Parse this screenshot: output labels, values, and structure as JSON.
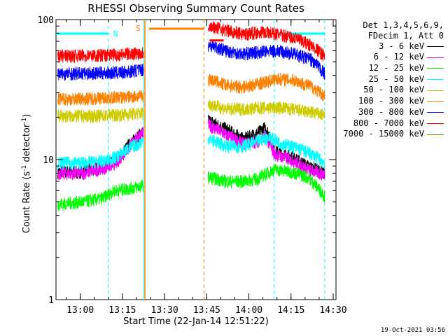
{
  "chart_data": {
    "type": "line",
    "title": "RHESSI Observing Summary Count Rates",
    "xlabel": "Start Time (22-Jan-14 12:51:22)",
    "ylabel_main": "Count Rate (s",
    "ylabel_sup": "-1",
    "ylabel_tail": " detector",
    "ylabel_close": ")",
    "x_axis": {
      "range": [
        "12:51:22",
        "14:31:00"
      ],
      "ticks": [
        "13:00",
        "13:15",
        "13:30",
        "13:45",
        "14:00",
        "14:15",
        "14:30"
      ]
    },
    "y_axis": {
      "scale": "log",
      "range": [
        1,
        100
      ],
      "ticks": [
        "1",
        "10",
        "100"
      ]
    },
    "legend_header": [
      "Det 1,3,4,5,6,9,",
      "FDecim 1, Att 0"
    ],
    "legend_placement": "right",
    "series": [
      {
        "name": "3 - 6 keV",
        "color": "#000000",
        "points": [
          [
            "12:52",
            8.2
          ],
          [
            "13:01",
            8.2
          ],
          [
            "13:09",
            9.0
          ],
          [
            "13:13",
            10.0
          ],
          [
            "13:17",
            12.5
          ],
          [
            "13:21",
            15.0
          ],
          [
            "13:22",
            15.5
          ],
          [
            "13:46",
            19.0
          ],
          [
            "13:52",
            16.5
          ],
          [
            "13:58",
            14.0
          ],
          [
            "14:03",
            15.5
          ],
          [
            "14:06",
            17.0
          ],
          [
            "14:09",
            11.5
          ],
          [
            "14:15",
            10.5
          ],
          [
            "14:21",
            9.0
          ],
          [
            "14:27",
            8.0
          ]
        ]
      },
      {
        "name": "6 - 12 keV",
        "color": "#ff00ff",
        "points": [
          [
            "12:52",
            8.0
          ],
          [
            "13:01",
            8.0
          ],
          [
            "13:09",
            8.8
          ],
          [
            "13:13",
            9.5
          ],
          [
            "13:17",
            12.0
          ],
          [
            "13:21",
            15.0
          ],
          [
            "13:22",
            15.5
          ],
          [
            "13:46",
            17.5
          ],
          [
            "13:52",
            15.0
          ],
          [
            "13:58",
            13.0
          ],
          [
            "14:03",
            13.5
          ],
          [
            "14:06",
            14.5
          ],
          [
            "14:09",
            11.0
          ],
          [
            "14:15",
            10.0
          ],
          [
            "14:21",
            8.5
          ],
          [
            "14:27",
            7.8
          ]
        ]
      },
      {
        "name": "12 - 25 keV",
        "color": "#00ff00",
        "points": [
          [
            "12:52",
            4.8
          ],
          [
            "13:01",
            5.0
          ],
          [
            "13:08",
            5.3
          ],
          [
            "13:12",
            6.0
          ],
          [
            "13:17",
            6.2
          ],
          [
            "13:22",
            6.5
          ],
          [
            "13:46",
            7.5
          ],
          [
            "13:52",
            7.0
          ],
          [
            "13:58",
            7.0
          ],
          [
            "14:03",
            7.3
          ],
          [
            "14:09",
            8.5
          ],
          [
            "14:15",
            8.2
          ],
          [
            "14:21",
            7.5
          ],
          [
            "14:27",
            5.5
          ]
        ]
      },
      {
        "name": "25 - 50 keV",
        "color": "#00ffff",
        "points": [
          [
            "12:52",
            9.5
          ],
          [
            "13:01",
            9.5
          ],
          [
            "13:09",
            9.8
          ],
          [
            "13:13",
            10.5
          ],
          [
            "13:17",
            12.0
          ],
          [
            "13:21",
            13.0
          ],
          [
            "13:22",
            13.5
          ],
          [
            "13:46",
            14.0
          ],
          [
            "13:52",
            12.5
          ],
          [
            "13:58",
            12.5
          ],
          [
            "14:03",
            13.5
          ],
          [
            "14:07",
            14.5
          ],
          [
            "14:12",
            13.0
          ],
          [
            "14:18",
            12.0
          ],
          [
            "14:24",
            10.5
          ],
          [
            "14:27",
            9.5
          ]
        ]
      },
      {
        "name": "50 - 100 keV",
        "color": "#cccc00",
        "points": [
          [
            "12:52",
            20.5
          ],
          [
            "13:05",
            20.5
          ],
          [
            "13:15",
            21.0
          ],
          [
            "13:22",
            21.5
          ],
          [
            "13:46",
            25.0
          ],
          [
            "13:52",
            23.0
          ],
          [
            "13:58",
            23.0
          ],
          [
            "14:05",
            23.5
          ],
          [
            "14:12",
            23.5
          ],
          [
            "14:18",
            22.5
          ],
          [
            "14:24",
            21.5
          ],
          [
            "14:27",
            20.5
          ]
        ]
      },
      {
        "name": "100 - 300 keV",
        "color": "#ff8000",
        "points": [
          [
            "12:52",
            27.0
          ],
          [
            "13:05",
            27.5
          ],
          [
            "13:15",
            28.0
          ],
          [
            "13:22",
            28.5
          ],
          [
            "13:46",
            37.5
          ],
          [
            "13:52",
            34.0
          ],
          [
            "13:58",
            33.0
          ],
          [
            "14:05",
            35.5
          ],
          [
            "14:10",
            38.0
          ],
          [
            "14:16",
            37.0
          ],
          [
            "14:22",
            33.5
          ],
          [
            "14:27",
            28.5
          ]
        ]
      },
      {
        "name": "300 - 800 keV",
        "color": "#0000ff",
        "points": [
          [
            "12:52",
            41.0
          ],
          [
            "13:05",
            41.5
          ],
          [
            "13:15",
            42.0
          ],
          [
            "13:22",
            44.0
          ],
          [
            "13:46",
            66.0
          ],
          [
            "13:52",
            60.0
          ],
          [
            "13:58",
            57.0
          ],
          [
            "14:05",
            59.0
          ],
          [
            "14:10",
            60.0
          ],
          [
            "14:16",
            57.0
          ],
          [
            "14:22",
            52.0
          ],
          [
            "14:27",
            41.0
          ]
        ]
      },
      {
        "name": "800 - 7000 keV",
        "color": "#ff0000",
        "points": [
          [
            "12:52",
            55.0
          ],
          [
            "13:05",
            55.5
          ],
          [
            "13:15",
            56.5
          ],
          [
            "13:22",
            58.0
          ],
          [
            "13:46",
            90.0
          ],
          [
            "13:52",
            84.0
          ],
          [
            "13:58",
            79.0
          ],
          [
            "14:05",
            82.0
          ],
          [
            "14:10",
            79.0
          ],
          [
            "14:16",
            74.0
          ],
          [
            "14:22",
            66.0
          ],
          [
            "14:27",
            55.0
          ]
        ]
      },
      {
        "name": "7000 - 15000 keV",
        "color": "#808000",
        "points": []
      }
    ],
    "annotations": {
      "night_label": "N",
      "night_intervals": [
        [
          "12:51:22",
          "13:10:00"
        ],
        [
          "14:09:00",
          "14:27:00"
        ]
      ],
      "saa_label": "S",
      "saa_interval": [
        "13:23:00",
        "13:44:00"
      ],
      "short_red_segment": [
        "13:46:00",
        "13:51:00"
      ],
      "short_red_value": 71
    },
    "grid": false
  },
  "footer": {
    "timestamp": "19-Oct-2021 03:56"
  }
}
